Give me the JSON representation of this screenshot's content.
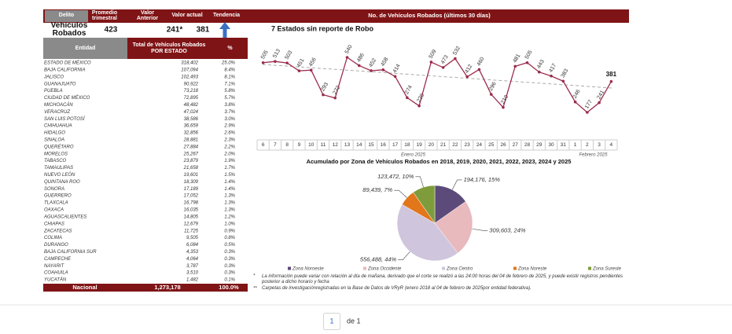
{
  "header": {
    "columns": [
      "Delito",
      "Promedio trimestral",
      "Valor Anterior",
      "Valor actual",
      "Tendencia"
    ]
  },
  "summary": {
    "label": "Vehículos Robados",
    "values": [
      423,
      "241*",
      381
    ]
  },
  "table": {
    "columns": [
      "Entidad",
      "Total de Vehículos Robados POR ESTADO",
      "%"
    ],
    "rows": [
      [
        "ESTADO DE MÉXICO",
        "318,402",
        "25.0%"
      ],
      [
        "BAJA CALIFORNIA",
        "107,094",
        "8.4%"
      ],
      [
        "JALISCO",
        "102,493",
        "8.1%"
      ],
      [
        "GUANAJUATO",
        "90,922",
        "7.1%"
      ],
      [
        "PUEBLA",
        "73,218",
        "5.8%"
      ],
      [
        "CIUDAD DE MÉXICO",
        "72,895",
        "5.7%"
      ],
      [
        "MICHOACÁN",
        "48,482",
        "3.8%"
      ],
      [
        "VERACRUZ",
        "47,024",
        "3.7%"
      ],
      [
        "SAN LUIS POTOSÍ",
        "38,586",
        "3.0%"
      ],
      [
        "CHIHUAHUA",
        "36,659",
        "2.9%"
      ],
      [
        "HIDALGO",
        "32,856",
        "2.6%"
      ],
      [
        "SINALOA",
        "28,881",
        "2.3%"
      ],
      [
        "QUERÉTARO",
        "27,884",
        "2.2%"
      ],
      [
        "MORELOS",
        "25,267",
        "2.0%"
      ],
      [
        "TABASCO",
        "23,879",
        "1.9%"
      ],
      [
        "TAMAULIPAS",
        "21,658",
        "1.7%"
      ],
      [
        "NUEVO LEÓN",
        "19,601",
        "1.5%"
      ],
      [
        "QUINTANA ROO",
        "18,309",
        "1.4%"
      ],
      [
        "SONORA",
        "17,189",
        "1.4%"
      ],
      [
        "GUERRERO",
        "17,052",
        "1.3%"
      ],
      [
        "TLAXCALA",
        "16,798",
        "1.3%"
      ],
      [
        "OAXACA",
        "16,035",
        "1.3%"
      ],
      [
        "AGUASCALIENTES",
        "14,805",
        "1.2%"
      ],
      [
        "CHIAPAS",
        "12,679",
        "1.0%"
      ],
      [
        "ZACATECAS",
        "11,725",
        "0.9%"
      ],
      [
        "COLIMA",
        "9,505",
        "0.8%"
      ],
      [
        "DURANGO",
        "6,084",
        "0.5%"
      ],
      [
        "BAJA CALIFORNIA SUR",
        "4,353",
        "0.3%"
      ],
      [
        "CAMPECHE",
        "4,064",
        "0.3%"
      ],
      [
        "NAYARIT",
        "3,787",
        "0.3%"
      ],
      [
        "COAHUILA",
        "3,510",
        "0.3%"
      ],
      [
        "YUCATÁN",
        "1,482",
        "0.1%"
      ]
    ],
    "total": [
      "Nacional",
      "1,273,178",
      "100.0%"
    ]
  },
  "chart_data": [
    {
      "type": "line",
      "title": "No. de Vehículos Robados (últimos 30 días)",
      "subtitle": "7 Estados sin reporte de Robo",
      "categories": [
        "6",
        "7",
        "8",
        "9",
        "10",
        "11",
        "12",
        "13",
        "14",
        "15",
        "16",
        "17",
        "18",
        "19",
        "20",
        "21",
        "22",
        "23",
        "24",
        "25",
        "26",
        "27",
        "28",
        "29",
        "30",
        "31",
        "1",
        "2",
        "3",
        "4"
      ],
      "x_groups": [
        "Enero 2025",
        "Febrero 2025"
      ],
      "series": [
        {
          "name": "Vehículos Robados",
          "color": "#9b2c4c",
          "values": [
            505,
            513,
            503,
            451,
            456,
            293,
            272,
            540,
            486,
            452,
            458,
            414,
            274,
            220,
            509,
            473,
            532,
            412,
            460,
            296,
            210,
            481,
            505,
            443,
            417,
            383,
            246,
            177,
            241,
            381
          ]
        }
      ]
    },
    {
      "type": "pie",
      "title": "Acumulado por Zona de Vehículos Robados en 2018, 2019, 2020, 2021, 2022, 2023, 2024 y 2025",
      "categories": [
        "Zona Noroeste",
        "Zona Occidente",
        "Zona Centro",
        "Zona Noreste",
        "Zona Sureste"
      ],
      "values": [
        194176,
        309603,
        556488,
        89439,
        123472
      ],
      "value_labels": [
        "194,176, 15%",
        "309,603, 24%",
        "556,488, 44%",
        "89,439, 7%",
        "123,472, 10%"
      ],
      "colors": [
        "#5b4a7a",
        "#e8b9bd",
        "#cfc6dd",
        "#e2761b",
        "#7e9c3c"
      ]
    }
  ],
  "footnotes": [
    [
      "*",
      "La información puede variar con relación al día de mañana, derivado que el corte se realizó a las 24:00 horas del 04 de febrero de 2025, y puede existir registros pendientes posterior a dicho horario y fecha"
    ],
    [
      "**",
      "Carpetas de investigaciónregistradas en la Base de Datos de VRyR (enero 2018 al 04 de febrero de 2025por entidad federativa)."
    ]
  ],
  "pagination": {
    "page": "1",
    "of": "de 1"
  }
}
